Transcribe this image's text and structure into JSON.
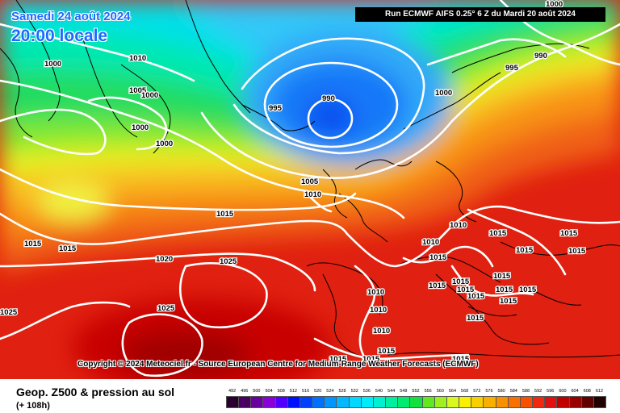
{
  "header": {
    "date_label": "Samedi 24 août 2024",
    "time_label": "20:00 locale",
    "run_label": "Run ECMWF AIFS 0.25° 6 Z du Mardi 20 août 2024"
  },
  "footer": {
    "copyright": "Copyright © 2024 Meteociel.fr - Source European Centre for Medium-Range Weather Forecasts (ECMWF)",
    "product_title": "Geop. Z500 & pression au sol",
    "lead_time": "(+ 108h)"
  },
  "legend": {
    "ticks": [
      "492",
      "496",
      "500",
      "504",
      "508",
      "512",
      "516",
      "520",
      "524",
      "528",
      "532",
      "536",
      "540",
      "544",
      "548",
      "552",
      "556",
      "560",
      "564",
      "568",
      "572",
      "576",
      "580",
      "584",
      "588",
      "592",
      "596",
      "600",
      "604",
      "608",
      "612"
    ],
    "colors": [
      "#2a0030",
      "#4a0060",
      "#6a00a0",
      "#8a00d8",
      "#5000ff",
      "#0010ff",
      "#0040ff",
      "#0070ff",
      "#0096ff",
      "#00b8ff",
      "#00d8ff",
      "#00ecf8",
      "#00f0d0",
      "#00f0a0",
      "#00ec70",
      "#10e040",
      "#60e820",
      "#a0f020",
      "#d8f820",
      "#f8f000",
      "#f8d000",
      "#f8b000",
      "#f89000",
      "#f87000",
      "#f85000",
      "#f02810",
      "#e01010",
      "#c00000",
      "#980000",
      "#600000",
      "#200000"
    ]
  },
  "isobar_labels": [
    {
      "text": "1000",
      "near": "labrador-west"
    },
    {
      "text": "1010",
      "near": "greenland-south"
    },
    {
      "text": "1005",
      "near": "labrador"
    },
    {
      "text": "1000",
      "near": "labrador-east"
    },
    {
      "text": "1000",
      "near": "labrador-coast"
    },
    {
      "text": "1000",
      "near": "labrador-ne"
    },
    {
      "text": "995",
      "near": "iceland-west"
    },
    {
      "text": "990",
      "near": "low-centre"
    },
    {
      "text": "995",
      "near": "norway-north"
    },
    {
      "text": "990",
      "near": "norwegian-sea"
    },
    {
      "text": "1000",
      "near": "norway-coast"
    },
    {
      "text": "1000",
      "near": "scandinavia-top"
    },
    {
      "text": "1005",
      "near": "scotland"
    },
    {
      "text": "1010",
      "near": "ireland"
    },
    {
      "text": "1015",
      "near": "mid-atlantic"
    },
    {
      "text": "1015",
      "near": "west-edge"
    },
    {
      "text": "1015",
      "near": "atlantic-west"
    },
    {
      "text": "1020",
      "near": "azores-north"
    },
    {
      "text": "1025",
      "near": "azores-high"
    },
    {
      "text": "1025",
      "near": "azores-south"
    },
    {
      "text": "1025",
      "near": "west-edge-south"
    },
    {
      "text": "1010",
      "near": "denmark"
    },
    {
      "text": "1015",
      "near": "poland"
    },
    {
      "text": "1015",
      "near": "russia"
    },
    {
      "text": "1010",
      "near": "benelux"
    },
    {
      "text": "1015",
      "near": "alps"
    },
    {
      "text": "1015",
      "near": "hungary"
    },
    {
      "text": "1015",
      "near": "ukraine"
    },
    {
      "text": "1015",
      "near": "italy"
    },
    {
      "text": "1015",
      "near": "balkans-1"
    },
    {
      "text": "1015",
      "near": "balkans-2"
    },
    {
      "text": "1015",
      "near": "balkans-3"
    },
    {
      "text": "1015",
      "near": "romania"
    },
    {
      "text": "1015",
      "near": "greece"
    },
    {
      "text": "1015",
      "near": "greece-south"
    },
    {
      "text": "1015",
      "near": "aegean"
    },
    {
      "text": "1010",
      "near": "spain-north"
    },
    {
      "text": "1010",
      "near": "spain-central"
    },
    {
      "text": "1010",
      "near": "spain-south"
    },
    {
      "text": "1015",
      "near": "algeria"
    },
    {
      "text": "1015",
      "near": "north-africa-1"
    },
    {
      "text": "1015",
      "near": "north-africa-2"
    },
    {
      "text": "1015",
      "near": "libya"
    },
    {
      "text": "1015",
      "near": "turkey"
    }
  ]
}
